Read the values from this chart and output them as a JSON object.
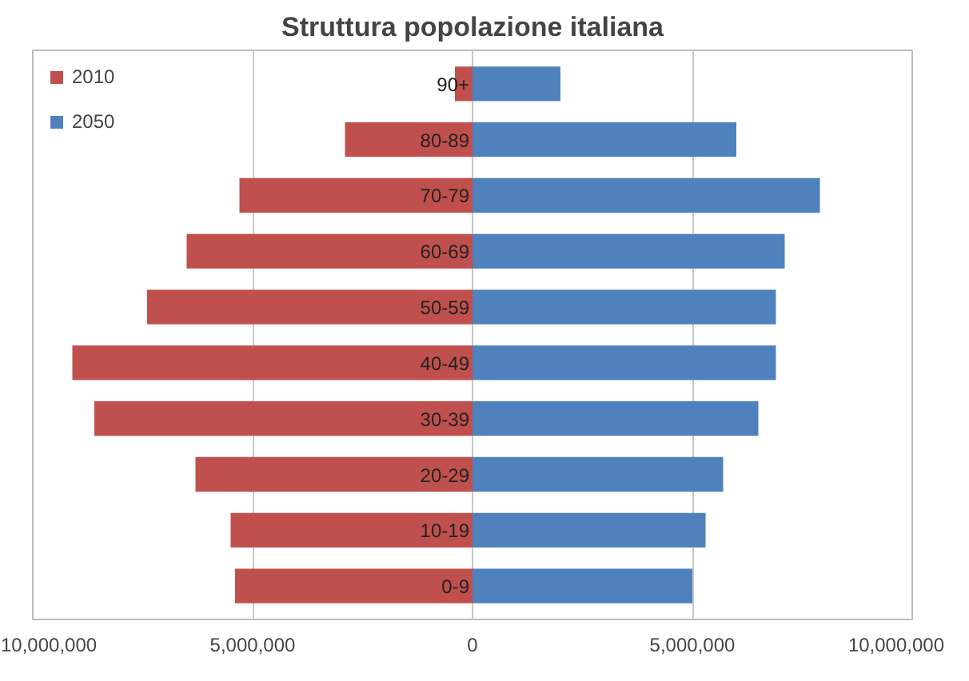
{
  "chart_data": {
    "type": "bar",
    "orientation": "horizontal",
    "stacked": true,
    "title": "Struttura popolazione italiana",
    "categories": [
      "90+",
      "80-89",
      "70-79",
      "60-69",
      "50-59",
      "40-49",
      "30-39",
      "20-29",
      "10-19",
      "0-9"
    ],
    "series": [
      {
        "name": "2010",
        "color": "#c0504d",
        "values": [
          -400000,
          -2900000,
          -5300000,
          -6500000,
          -7400000,
          -9100000,
          -8600000,
          -6300000,
          -5500000,
          -5400000
        ]
      },
      {
        "name": "2050",
        "color": "#4f81bd",
        "values": [
          2000000,
          6000000,
          7900000,
          7100000,
          6900000,
          6900000,
          6500000,
          5700000,
          5300000,
          5000000
        ]
      }
    ],
    "xlim": [
      -10000000,
      10000000
    ],
    "xticks": [
      {
        "value": -10000000,
        "label": "10,000,000"
      },
      {
        "value": -5000000,
        "label": "5,000,000"
      },
      0,
      {
        "value": 5000000,
        "label": "5,000,000"
      },
      {
        "value": 10000000,
        "label": "10,000,000"
      }
    ],
    "grid": "x",
    "legend": "top left"
  }
}
